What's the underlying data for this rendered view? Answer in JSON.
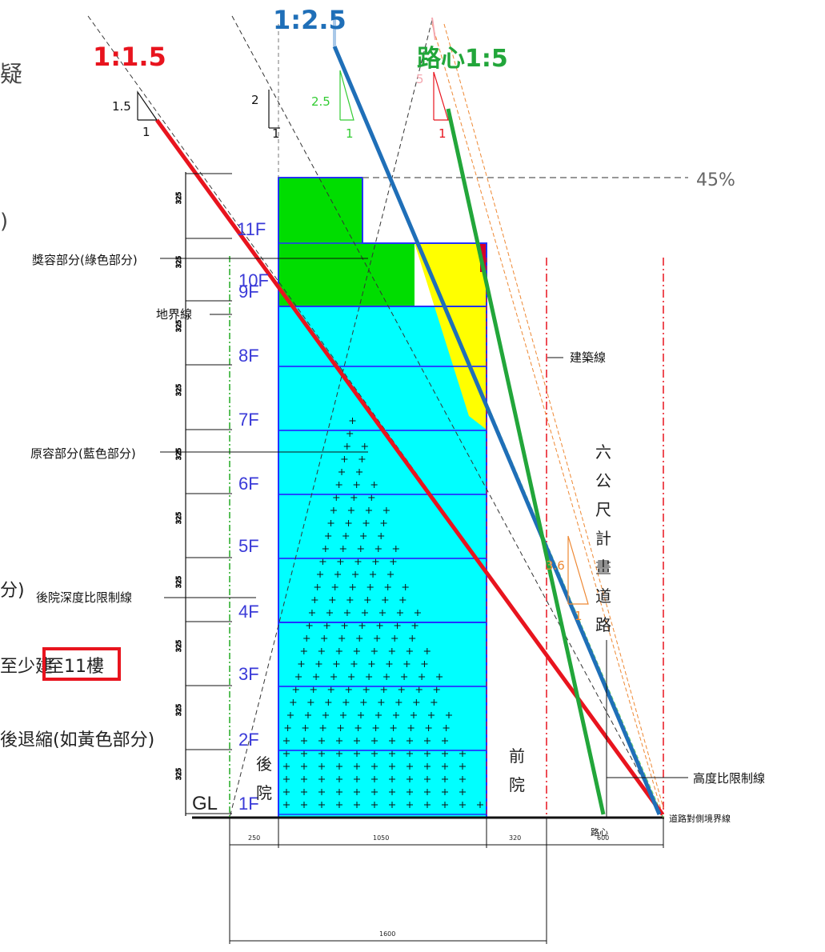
{
  "ratios": {
    "red": "1:1.5",
    "blue": "1:2.5",
    "green": "路心1:5"
  },
  "slope_marks": {
    "m1_5_rise": "1.5",
    "m1_5_run": "1",
    "m2_rise": "2",
    "m2_run": "1",
    "m2_5_rise": "2.5",
    "m2_5_run": "1",
    "m5_rise": "5",
    "m5_run": "1",
    "m3_6_rise": "3.6",
    "m3_6_run": "1"
  },
  "percent": "45%",
  "floors": [
    "1F",
    "2F",
    "3F",
    "4F",
    "5F",
    "6F",
    "7F",
    "8F",
    "9F",
    "10F",
    "11F"
  ],
  "labels": {
    "bonus_part": "獎容部分(綠色部分)",
    "lot_line": "地界線",
    "original_part": "原容部分(藍色部分)",
    "rear_limit": "後院深度比限制線",
    "building_line": "建築線",
    "height_limit": "高度比限制線",
    "road_center": "路心",
    "road_boundary": "道路對側境界線",
    "gl": "GL",
    "rear_yard": "後院",
    "front_yard": "前院",
    "road_name": "六公尺計畫道路",
    "edge_1": "疑",
    "edge_2": ")",
    "edge_3a": "至少建",
    "edge_3b": "至11樓",
    "edge_4": "後退縮(如黃色部分)",
    "edge_5": "分)"
  },
  "dimensions": {
    "d1": "250",
    "d2": "1050",
    "d3": "320",
    "d4": "600",
    "total": "1600",
    "floor_height": "325"
  },
  "colors": {
    "red": "#e8141e",
    "blue": "#1f6fb8",
    "green": "#22a63a",
    "cyan": "#00ffff",
    "bonus_green": "#00dd00",
    "yellow": "#ffff00"
  }
}
